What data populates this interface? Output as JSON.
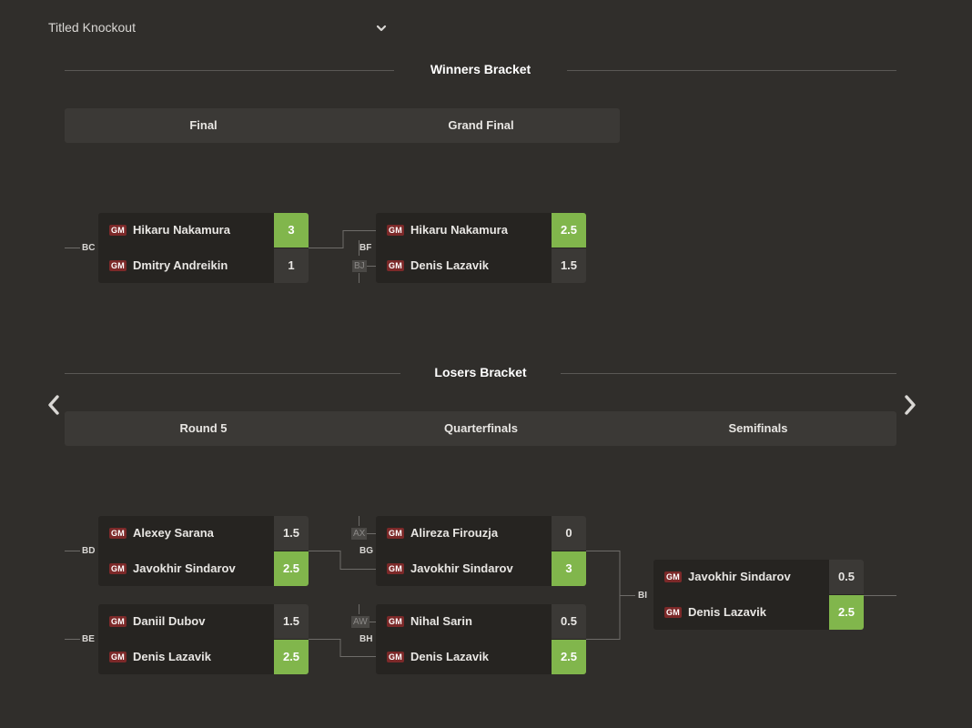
{
  "dropdown": {
    "label": "Titled Knockout"
  },
  "winners": {
    "title": "Winners Bracket",
    "rounds": [
      "Final",
      "Grand Final"
    ],
    "matches": [
      {
        "code": "BC",
        "p1": {
          "title": "GM",
          "name": "Hikaru Nakamura",
          "score": "3"
        },
        "p2": {
          "title": "GM",
          "name": "Dmitry Andreikin",
          "score": "1"
        }
      },
      {
        "code": "BF",
        "feeder": "BJ",
        "p1": {
          "title": "GM",
          "name": "Hikaru Nakamura",
          "score": "2.5"
        },
        "p2": {
          "title": "GM",
          "name": "Denis Lazavik",
          "score": "1.5"
        }
      }
    ]
  },
  "losers": {
    "title": "Losers Bracket",
    "rounds": [
      "Round 5",
      "Quarterfinals",
      "Semifinals"
    ],
    "matches": [
      {
        "code": "BD",
        "p1": {
          "title": "GM",
          "name": "Alexey Sarana",
          "score": "1.5"
        },
        "p2": {
          "title": "GM",
          "name": "Javokhir Sindarov",
          "score": "2.5"
        }
      },
      {
        "code": "BE",
        "p1": {
          "title": "GM",
          "name": "Daniil Dubov",
          "score": "1.5"
        },
        "p2": {
          "title": "GM",
          "name": "Denis Lazavik",
          "score": "2.5"
        }
      },
      {
        "code": "BG",
        "feeder": "AX",
        "p1": {
          "title": "GM",
          "name": "Alireza Firouzja",
          "score": "0"
        },
        "p2": {
          "title": "GM",
          "name": "Javokhir Sindarov",
          "score": "3"
        }
      },
      {
        "code": "BH",
        "feeder": "AW",
        "p1": {
          "title": "GM",
          "name": "Nihal Sarin",
          "score": "0.5"
        },
        "p2": {
          "title": "GM",
          "name": "Denis Lazavik",
          "score": "2.5"
        }
      },
      {
        "code": "BI",
        "p1": {
          "title": "GM",
          "name": "Javokhir Sindarov",
          "score": "0.5"
        },
        "p2": {
          "title": "GM",
          "name": "Denis Lazavik",
          "score": "2.5"
        }
      }
    ]
  },
  "colors": {
    "background": "#302e2b",
    "win": "#81b64c",
    "badge": "#7c2929",
    "panel": "#262421"
  }
}
